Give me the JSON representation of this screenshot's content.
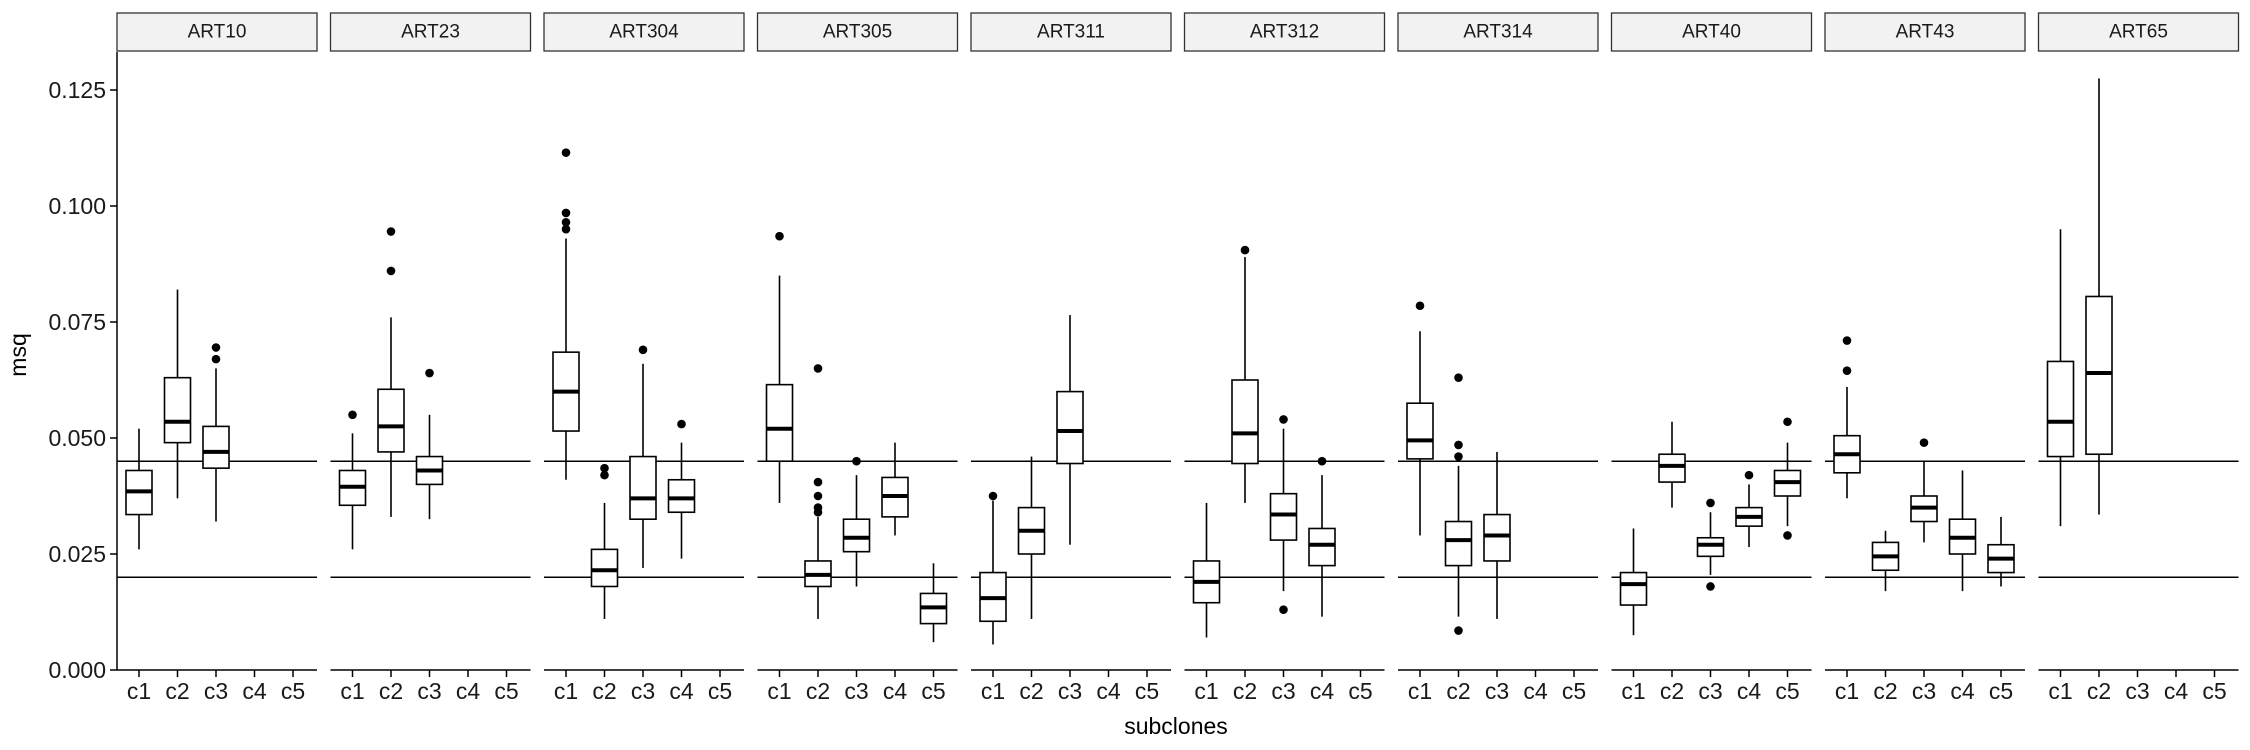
{
  "chart_data": {
    "type": "boxplot",
    "xlabel": "subclones",
    "ylabel": "msq",
    "ylim": [
      0,
      0.13
    ],
    "yticks": [
      0.0,
      0.025,
      0.05,
      0.075,
      0.1,
      0.125
    ],
    "ytick_labels": [
      "0.000",
      "0.025",
      "0.050",
      "0.075",
      "0.100",
      "0.125"
    ],
    "categories": [
      "c1",
      "c2",
      "c3",
      "c4",
      "c5"
    ],
    "reference_lines": [
      0.02,
      0.045
    ],
    "facets": [
      {
        "name": "ART10",
        "boxes": [
          {
            "cat": "c1",
            "lo": 0.026,
            "q1": 0.0335,
            "med": 0.0385,
            "q3": 0.043,
            "hi": 0.052,
            "outliers": []
          },
          {
            "cat": "c2",
            "lo": 0.037,
            "q1": 0.049,
            "med": 0.0535,
            "q3": 0.063,
            "hi": 0.082,
            "outliers": []
          },
          {
            "cat": "c3",
            "lo": 0.032,
            "q1": 0.0435,
            "med": 0.047,
            "q3": 0.0525,
            "hi": 0.065,
            "outliers": [
              0.067,
              0.0695
            ]
          }
        ]
      },
      {
        "name": "ART23",
        "boxes": [
          {
            "cat": "c1",
            "lo": 0.026,
            "q1": 0.0355,
            "med": 0.0395,
            "q3": 0.043,
            "hi": 0.051,
            "outliers": [
              0.055
            ]
          },
          {
            "cat": "c2",
            "lo": 0.033,
            "q1": 0.047,
            "med": 0.0525,
            "q3": 0.0605,
            "hi": 0.076,
            "outliers": [
              0.086,
              0.0945
            ]
          },
          {
            "cat": "c3",
            "lo": 0.0325,
            "q1": 0.04,
            "med": 0.043,
            "q3": 0.046,
            "hi": 0.055,
            "outliers": [
              0.064
            ]
          }
        ]
      },
      {
        "name": "ART304",
        "boxes": [
          {
            "cat": "c1",
            "lo": 0.041,
            "q1": 0.0515,
            "med": 0.06,
            "q3": 0.0685,
            "hi": 0.093,
            "outliers": [
              0.095,
              0.0965,
              0.0985,
              0.1115
            ]
          },
          {
            "cat": "c2",
            "lo": 0.011,
            "q1": 0.018,
            "med": 0.0215,
            "q3": 0.026,
            "hi": 0.036,
            "outliers": [
              0.042,
              0.0435
            ]
          },
          {
            "cat": "c3",
            "lo": 0.022,
            "q1": 0.0325,
            "med": 0.037,
            "q3": 0.046,
            "hi": 0.066,
            "outliers": [
              0.069
            ]
          },
          {
            "cat": "c4",
            "lo": 0.024,
            "q1": 0.034,
            "med": 0.037,
            "q3": 0.041,
            "hi": 0.049,
            "outliers": [
              0.053
            ]
          }
        ]
      },
      {
        "name": "ART305",
        "boxes": [
          {
            "cat": "c1",
            "lo": 0.036,
            "q1": 0.045,
            "med": 0.052,
            "q3": 0.0615,
            "hi": 0.085,
            "outliers": [
              0.0935
            ]
          },
          {
            "cat": "c2",
            "lo": 0.011,
            "q1": 0.018,
            "med": 0.0205,
            "q3": 0.0235,
            "hi": 0.033,
            "outliers": [
              0.034,
              0.035,
              0.0375,
              0.0405,
              0.065
            ]
          },
          {
            "cat": "c3",
            "lo": 0.018,
            "q1": 0.0255,
            "med": 0.0285,
            "q3": 0.0325,
            "hi": 0.042,
            "outliers": [
              0.045
            ]
          },
          {
            "cat": "c4",
            "lo": 0.029,
            "q1": 0.033,
            "med": 0.0375,
            "q3": 0.0415,
            "hi": 0.049,
            "outliers": []
          },
          {
            "cat": "c5",
            "lo": 0.006,
            "q1": 0.01,
            "med": 0.0135,
            "q3": 0.0165,
            "hi": 0.023,
            "outliers": []
          }
        ]
      },
      {
        "name": "ART311",
        "boxes": [
          {
            "cat": "c1",
            "lo": 0.0055,
            "q1": 0.0105,
            "med": 0.0155,
            "q3": 0.021,
            "hi": 0.0365,
            "outliers": [
              0.0375
            ]
          },
          {
            "cat": "c2",
            "lo": 0.011,
            "q1": 0.025,
            "med": 0.03,
            "q3": 0.035,
            "hi": 0.046,
            "outliers": []
          },
          {
            "cat": "c3",
            "lo": 0.027,
            "q1": 0.0445,
            "med": 0.0515,
            "q3": 0.06,
            "hi": 0.0765,
            "outliers": []
          }
        ]
      },
      {
        "name": "ART312",
        "boxes": [
          {
            "cat": "c1",
            "lo": 0.007,
            "q1": 0.0145,
            "med": 0.019,
            "q3": 0.0235,
            "hi": 0.036,
            "outliers": []
          },
          {
            "cat": "c2",
            "lo": 0.036,
            "q1": 0.0445,
            "med": 0.051,
            "q3": 0.0625,
            "hi": 0.089,
            "outliers": [
              0.0905
            ]
          },
          {
            "cat": "c3",
            "lo": 0.017,
            "q1": 0.028,
            "med": 0.0335,
            "q3": 0.038,
            "hi": 0.052,
            "outliers": [
              0.013,
              0.054
            ]
          },
          {
            "cat": "c4",
            "lo": 0.0115,
            "q1": 0.0225,
            "med": 0.027,
            "q3": 0.0305,
            "hi": 0.042,
            "outliers": [
              0.045
            ]
          }
        ]
      },
      {
        "name": "ART314",
        "boxes": [
          {
            "cat": "c1",
            "lo": 0.029,
            "q1": 0.0455,
            "med": 0.0495,
            "q3": 0.0575,
            "hi": 0.073,
            "outliers": [
              0.0785
            ]
          },
          {
            "cat": "c2",
            "lo": 0.0115,
            "q1": 0.0225,
            "med": 0.028,
            "q3": 0.032,
            "hi": 0.044,
            "outliers": [
              0.0085,
              0.046,
              0.0485,
              0.063
            ]
          },
          {
            "cat": "c3",
            "lo": 0.011,
            "q1": 0.0235,
            "med": 0.029,
            "q3": 0.0335,
            "hi": 0.047,
            "outliers": []
          }
        ]
      },
      {
        "name": "ART40",
        "boxes": [
          {
            "cat": "c1",
            "lo": 0.0075,
            "q1": 0.014,
            "med": 0.0185,
            "q3": 0.021,
            "hi": 0.0305,
            "outliers": []
          },
          {
            "cat": "c2",
            "lo": 0.035,
            "q1": 0.0405,
            "med": 0.044,
            "q3": 0.0465,
            "hi": 0.0535,
            "outliers": []
          },
          {
            "cat": "c3",
            "lo": 0.0205,
            "q1": 0.0245,
            "med": 0.027,
            "q3": 0.0285,
            "hi": 0.034,
            "outliers": [
              0.018,
              0.036
            ]
          },
          {
            "cat": "c4",
            "lo": 0.0265,
            "q1": 0.031,
            "med": 0.033,
            "q3": 0.035,
            "hi": 0.04,
            "outliers": [
              0.042
            ]
          },
          {
            "cat": "c5",
            "lo": 0.031,
            "q1": 0.0375,
            "med": 0.0405,
            "q3": 0.043,
            "hi": 0.049,
            "outliers": [
              0.029,
              0.0535
            ]
          }
        ]
      },
      {
        "name": "ART43",
        "boxes": [
          {
            "cat": "c1",
            "lo": 0.037,
            "q1": 0.0425,
            "med": 0.0465,
            "q3": 0.0505,
            "hi": 0.061,
            "outliers": [
              0.0645,
              0.071
            ]
          },
          {
            "cat": "c2",
            "lo": 0.017,
            "q1": 0.0215,
            "med": 0.0245,
            "q3": 0.0275,
            "hi": 0.03,
            "outliers": []
          },
          {
            "cat": "c3",
            "lo": 0.0275,
            "q1": 0.032,
            "med": 0.035,
            "q3": 0.0375,
            "hi": 0.045,
            "outliers": [
              0.049
            ]
          },
          {
            "cat": "c4",
            "lo": 0.017,
            "q1": 0.025,
            "med": 0.0285,
            "q3": 0.0325,
            "hi": 0.043,
            "outliers": []
          },
          {
            "cat": "c5",
            "lo": 0.018,
            "q1": 0.021,
            "med": 0.024,
            "q3": 0.027,
            "hi": 0.033,
            "outliers": []
          }
        ]
      },
      {
        "name": "ART65",
        "boxes": [
          {
            "cat": "c1",
            "lo": 0.031,
            "q1": 0.046,
            "med": 0.0535,
            "q3": 0.0665,
            "hi": 0.095,
            "outliers": []
          },
          {
            "cat": "c2",
            "lo": 0.0335,
            "q1": 0.0465,
            "med": 0.064,
            "q3": 0.0805,
            "hi": 0.1275,
            "outliers": []
          }
        ]
      }
    ]
  }
}
